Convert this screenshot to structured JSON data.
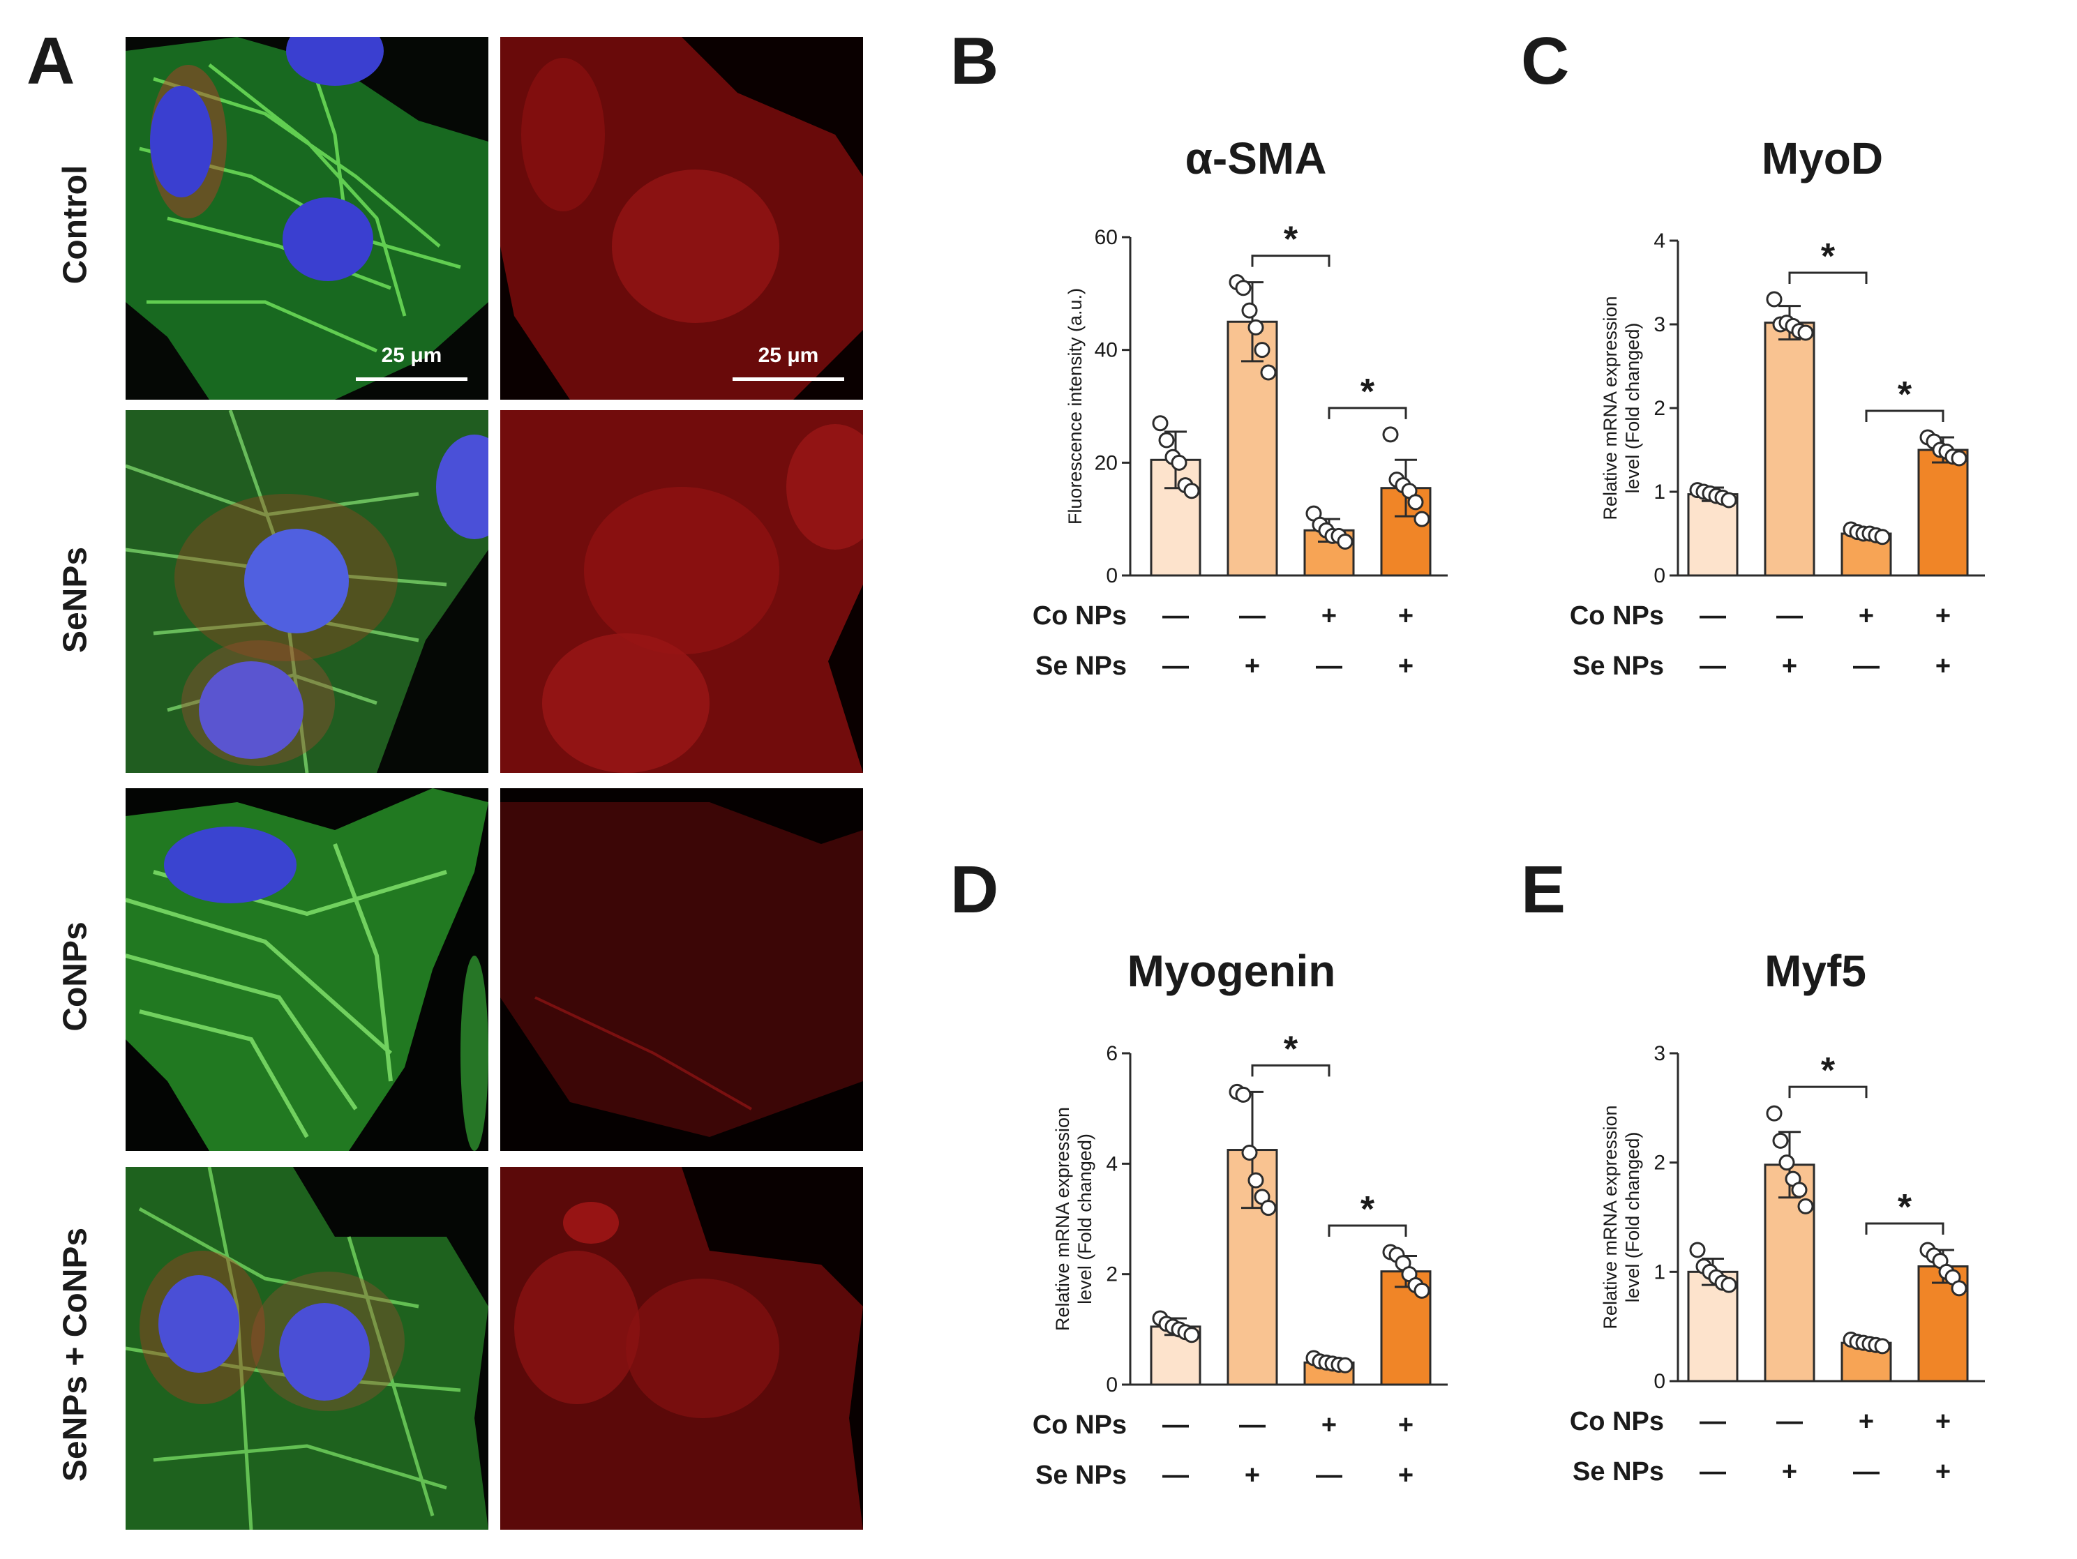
{
  "panel_a": {
    "letter": "A",
    "rows": [
      "Control",
      "SeNPs",
      "CoNPs",
      "SeNPs + CoNPs"
    ],
    "scale_bar_label": "25 μm"
  },
  "condition_labels": {
    "co": "Co NPs",
    "se": "Se NPs",
    "plus": "+",
    "minus": "—"
  },
  "colors": {
    "bar_fills": [
      "#fde3cc",
      "#f9c391",
      "#f7a455",
      "#f08527"
    ],
    "bar_stroke": "#2b2b2b"
  },
  "chart_data": [
    {
      "letter": "B",
      "type": "bar",
      "title": "α-SMA",
      "ylabel": [
        "Fluorescence intensity (a.u.)"
      ],
      "ylim": [
        0,
        60
      ],
      "yticks": [
        0,
        20,
        40,
        60
      ],
      "categories": [
        "Control",
        "SeNPs",
        "CoNPs",
        "SeNPs + CoNPs"
      ],
      "co_nps": [
        "—",
        "—",
        "+",
        "+"
      ],
      "se_nps": [
        "—",
        "+",
        "—",
        "+"
      ],
      "values": [
        20.5,
        45,
        8,
        15.5
      ],
      "errors": [
        5,
        7,
        2,
        5
      ],
      "points": [
        [
          27,
          24,
          21,
          20,
          16,
          15
        ],
        [
          52,
          51,
          47,
          44,
          40,
          36
        ],
        [
          11,
          9,
          8,
          7,
          7,
          6
        ],
        [
          25,
          17,
          16,
          15,
          13,
          10
        ]
      ],
      "significance": [
        {
          "bars": [
            1,
            2
          ],
          "label": "*"
        },
        {
          "bars": [
            2,
            3
          ],
          "label": "*"
        }
      ]
    },
    {
      "letter": "C",
      "type": "bar",
      "title": "MyoD",
      "ylabel": [
        "Relative mRNA expression",
        "level (Fold changed)"
      ],
      "ylim": [
        0,
        4
      ],
      "yticks": [
        0,
        1,
        2,
        3,
        4
      ],
      "categories": [
        "Control",
        "SeNPs",
        "CoNPs",
        "SeNPs + CoNPs"
      ],
      "co_nps": [
        "—",
        "—",
        "+",
        "+"
      ],
      "se_nps": [
        "—",
        "+",
        "—",
        "+"
      ],
      "values": [
        0.97,
        3.02,
        0.5,
        1.5
      ],
      "errors": [
        0.08,
        0.2,
        0.05,
        0.15
      ],
      "points": [
        [
          1.02,
          1.0,
          0.98,
          0.95,
          0.93,
          0.9
        ],
        [
          3.3,
          3.0,
          3.02,
          2.98,
          2.92,
          2.9
        ],
        [
          0.55,
          0.52,
          0.5,
          0.5,
          0.48,
          0.46
        ],
        [
          1.65,
          1.6,
          1.5,
          1.48,
          1.42,
          1.4
        ]
      ],
      "significance": [
        {
          "bars": [
            1,
            2
          ],
          "label": "*"
        },
        {
          "bars": [
            2,
            3
          ],
          "label": "*"
        }
      ]
    },
    {
      "letter": "D",
      "type": "bar",
      "title": "Myogenin",
      "ylabel": [
        "Relative mRNA expression",
        "level (Fold changed)"
      ],
      "ylim": [
        0,
        6
      ],
      "yticks": [
        0,
        2,
        4,
        6
      ],
      "categories": [
        "Control",
        "SeNPs",
        "CoNPs",
        "SeNPs + CoNPs"
      ],
      "co_nps": [
        "—",
        "—",
        "+",
        "+"
      ],
      "se_nps": [
        "—",
        "+",
        "—",
        "+"
      ],
      "values": [
        1.05,
        4.25,
        0.4,
        2.05
      ],
      "errors": [
        0.15,
        1.05,
        0.06,
        0.28
      ],
      "points": [
        [
          1.2,
          1.1,
          1.05,
          1.0,
          0.95,
          0.9
        ],
        [
          5.3,
          5.25,
          4.2,
          3.7,
          3.4,
          3.2
        ],
        [
          0.48,
          0.42,
          0.4,
          0.38,
          0.36,
          0.35
        ],
        [
          2.4,
          2.35,
          2.2,
          2.0,
          1.8,
          1.7
        ]
      ],
      "significance": [
        {
          "bars": [
            1,
            2
          ],
          "label": "*"
        },
        {
          "bars": [
            2,
            3
          ],
          "label": "*"
        }
      ]
    },
    {
      "letter": "E",
      "type": "bar",
      "title": "Myf5",
      "ylabel": [
        "Relative mRNA expression",
        "level (Fold changed)"
      ],
      "ylim": [
        0,
        3
      ],
      "yticks": [
        0,
        1,
        2,
        3
      ],
      "categories": [
        "Control",
        "SeNPs",
        "CoNPs",
        "SeNPs + CoNPs"
      ],
      "co_nps": [
        "—",
        "—",
        "+",
        "+"
      ],
      "se_nps": [
        "—",
        "+",
        "—",
        "+"
      ],
      "values": [
        1.0,
        1.98,
        0.35,
        1.05
      ],
      "errors": [
        0.12,
        0.3,
        0.04,
        0.15
      ],
      "points": [
        [
          1.2,
          1.05,
          1.0,
          0.95,
          0.9,
          0.88
        ],
        [
          2.45,
          2.2,
          2.0,
          1.85,
          1.75,
          1.6
        ],
        [
          0.38,
          0.36,
          0.35,
          0.34,
          0.33,
          0.32
        ],
        [
          1.2,
          1.15,
          1.1,
          1.0,
          0.95,
          0.85
        ]
      ],
      "significance": [
        {
          "bars": [
            1,
            2
          ],
          "label": "*"
        },
        {
          "bars": [
            2,
            3
          ],
          "label": "*"
        }
      ]
    }
  ]
}
